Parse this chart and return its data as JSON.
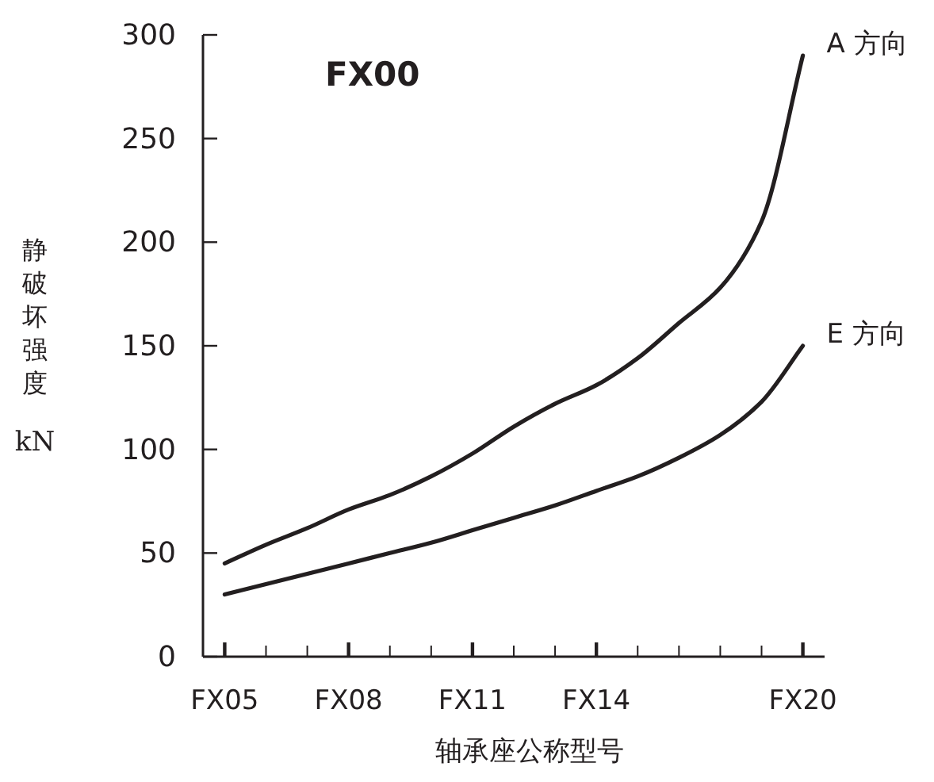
{
  "chart_data": {
    "type": "line",
    "title": "FX00",
    "xlabel": "轴承座公称型号",
    "ylabel": "静破坏强度 kN",
    "categories": [
      "FX05",
      null,
      null,
      "FX08",
      null,
      null,
      "FX11",
      null,
      null,
      "FX14",
      null,
      null,
      null,
      null,
      "FX20"
    ],
    "series": [
      {
        "name": "A 方向",
        "color": "#231f20",
        "values": [
          45,
          54,
          62,
          71,
          78,
          87,
          98,
          111,
          122,
          131,
          144,
          161,
          178,
          210,
          290
        ]
      },
      {
        "name": "E 方向",
        "color": "#231f20",
        "values": [
          30,
          35,
          40,
          45,
          50,
          55,
          61,
          67,
          73,
          80,
          87,
          96,
          107,
          123,
          150
        ]
      }
    ],
    "ylim": [
      0,
      300
    ],
    "yticks": [
      0,
      50,
      100,
      150,
      200,
      250,
      300
    ]
  }
}
